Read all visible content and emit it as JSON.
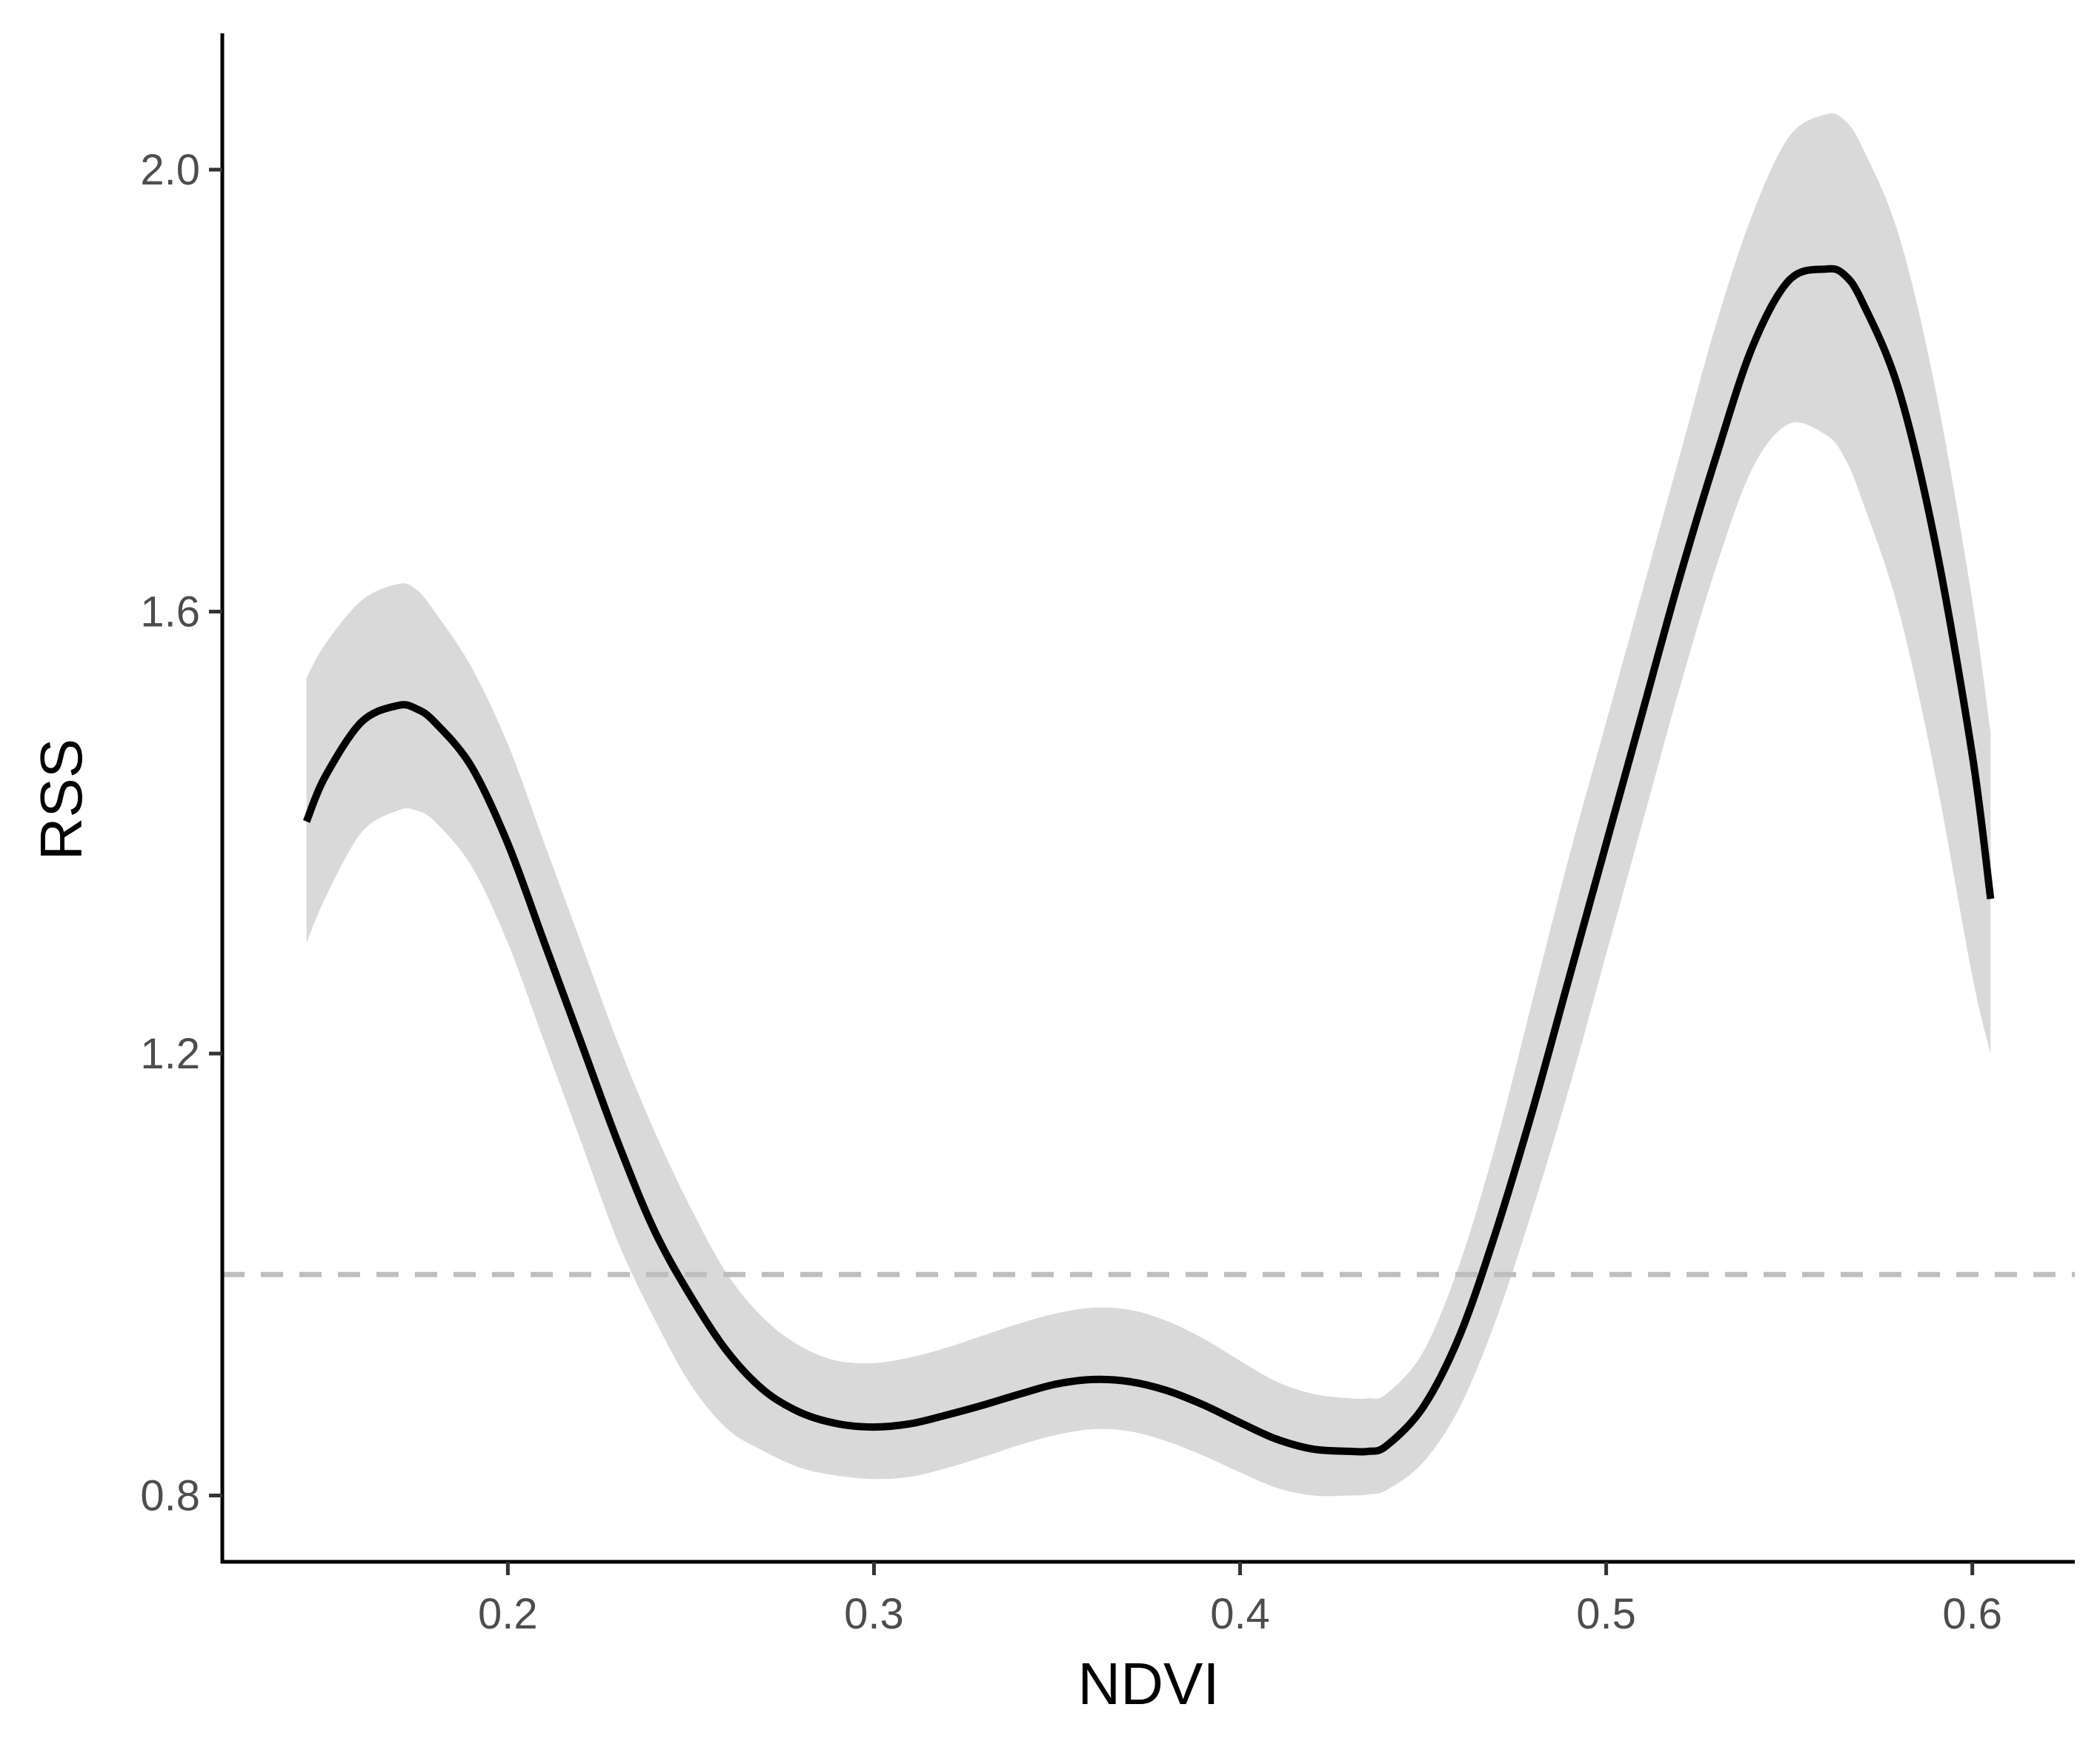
{
  "chart_data": {
    "type": "line",
    "title": "",
    "xlabel": "NDVI",
    "ylabel": "RSS",
    "xlim": [
      0.122,
      0.628
    ],
    "ylim": [
      0.74,
      2.12
    ],
    "x_ticks": [
      0.2,
      0.3,
      0.4,
      0.5,
      0.6
    ],
    "x_tick_labels": [
      "0.2",
      "0.3",
      "0.4",
      "0.5",
      "0.6"
    ],
    "y_ticks": [
      0.8,
      1.2,
      1.6,
      2.0
    ],
    "y_tick_labels": [
      "0.8",
      "1.2",
      "1.6",
      "2.0"
    ],
    "reference_line": {
      "y": 1.0,
      "style": "dashed",
      "color": "#bebebe"
    },
    "grid": false,
    "legend": "none",
    "colors": {
      "line": "#000000",
      "ribbon": "#d9d9d9",
      "axis": "#000000",
      "tick_text": "#4d4d4d"
    },
    "series": [
      {
        "x": [
          0.145,
          0.15,
          0.16,
          0.17,
          0.175,
          0.18,
          0.19,
          0.2,
          0.21,
          0.22,
          0.23,
          0.24,
          0.25,
          0.26,
          0.27,
          0.28,
          0.29,
          0.3,
          0.31,
          0.32,
          0.33,
          0.34,
          0.35,
          0.36,
          0.37,
          0.38,
          0.39,
          0.4,
          0.41,
          0.42,
          0.43,
          0.435,
          0.44,
          0.45,
          0.46,
          0.47,
          0.48,
          0.49,
          0.5,
          0.51,
          0.52,
          0.53,
          0.54,
          0.55,
          0.56,
          0.565,
          0.57,
          0.58,
          0.59,
          0.6,
          0.605
        ],
        "y": [
          1.41,
          1.45,
          1.5,
          1.515,
          1.512,
          1.5,
          1.46,
          1.39,
          1.3,
          1.21,
          1.12,
          1.04,
          0.98,
          0.93,
          0.895,
          0.875,
          0.865,
          0.862,
          0.865,
          0.873,
          0.882,
          0.892,
          0.901,
          0.905,
          0.903,
          0.895,
          0.882,
          0.866,
          0.851,
          0.842,
          0.84,
          0.84,
          0.845,
          0.88,
          0.945,
          1.04,
          1.15,
          1.27,
          1.39,
          1.51,
          1.63,
          1.74,
          1.84,
          1.9,
          1.91,
          1.905,
          1.88,
          1.8,
          1.66,
          1.47,
          1.34
        ],
        "lower": [
          1.3,
          1.34,
          1.4,
          1.42,
          1.42,
          1.41,
          1.37,
          1.3,
          1.21,
          1.12,
          1.03,
          0.96,
          0.9,
          0.86,
          0.84,
          0.825,
          0.818,
          0.815,
          0.817,
          0.825,
          0.835,
          0.846,
          0.855,
          0.86,
          0.858,
          0.849,
          0.836,
          0.821,
          0.807,
          0.8,
          0.8,
          0.801,
          0.805,
          0.83,
          0.88,
          0.96,
          1.06,
          1.17,
          1.29,
          1.41,
          1.53,
          1.64,
          1.73,
          1.77,
          1.76,
          1.74,
          1.7,
          1.6,
          1.45,
          1.27,
          1.2
        ],
        "upper": [
          1.54,
          1.57,
          1.61,
          1.625,
          1.62,
          1.6,
          1.55,
          1.48,
          1.39,
          1.3,
          1.21,
          1.13,
          1.06,
          1.0,
          0.96,
          0.935,
          0.922,
          0.92,
          0.925,
          0.934,
          0.945,
          0.956,
          0.965,
          0.97,
          0.968,
          0.958,
          0.942,
          0.922,
          0.903,
          0.892,
          0.888,
          0.888,
          0.892,
          0.93,
          1.01,
          1.12,
          1.25,
          1.38,
          1.5,
          1.62,
          1.74,
          1.86,
          1.96,
          2.03,
          2.05,
          2.045,
          2.02,
          1.94,
          1.8,
          1.61,
          1.49
        ]
      }
    ]
  }
}
